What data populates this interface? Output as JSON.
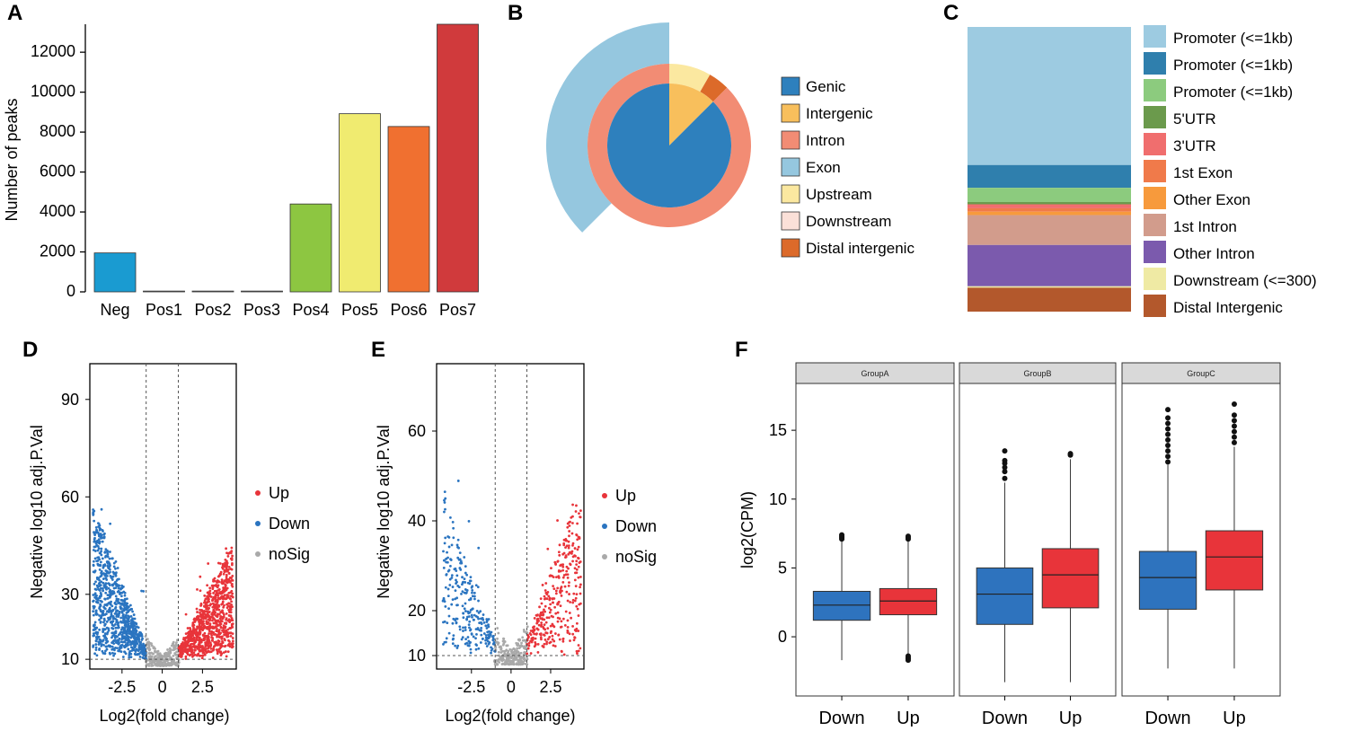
{
  "panel_labels": {
    "A": "A",
    "B": "B",
    "C": "C",
    "D": "D",
    "E": "E",
    "F": "F"
  },
  "chart_data": [
    {
      "panel": "A",
      "type": "bar",
      "ylabel": "Number of peaks",
      "xlabel": "",
      "categories": [
        "Neg",
        "Pos1",
        "Pos2",
        "Pos3",
        "Pos4",
        "Pos5",
        "Pos6",
        "Pos7"
      ],
      "values": [
        1950,
        40,
        40,
        40,
        4400,
        8920,
        8280,
        13400
      ],
      "colors": [
        "#1a9bd1",
        "#cfcfcf",
        "#cfcfcf",
        "#cfcfcf",
        "#8dc641",
        "#f0eb70",
        "#f07030",
        "#d03a3c"
      ],
      "ylim": [
        0,
        13400
      ],
      "yticks": [
        0,
        2000,
        4000,
        6000,
        8000,
        10000,
        12000
      ]
    },
    {
      "panel": "B",
      "type": "pie",
      "legend": [
        {
          "label": "Genic",
          "color": "#2e80bd"
        },
        {
          "label": "Intergenic",
          "color": "#f8bf5c"
        },
        {
          "label": "Intron",
          "color": "#f28c74"
        },
        {
          "label": "Exon",
          "color": "#95c7df"
        },
        {
          "label": "Upstream",
          "color": "#fbe8a0"
        },
        {
          "label": "Downstream",
          "color": "#fbe0d8"
        },
        {
          "label": "Distal intergenic",
          "color": "#dc6a2a"
        }
      ],
      "rings": {
        "inner": [
          {
            "label": "Genic",
            "value": 87.5
          },
          {
            "label": "Intergenic",
            "value": 12.5
          }
        ],
        "middle": [
          {
            "label": "Intron",
            "value": 87.5
          },
          {
            "label": "Upstream",
            "value": 8.3
          },
          {
            "label": "Distal intergenic",
            "value": 4.2
          }
        ],
        "outer": [
          {
            "label": "Exon",
            "value": 37.5
          },
          {
            "label": "None",
            "value": 62.5
          }
        ]
      }
    },
    {
      "panel": "C",
      "type": "bar",
      "stacked": true,
      "categories": [
        "Promoter (<=1kb)",
        "Promoter (<=1kb)",
        "Promoter (<=1kb)",
        "5'UTR",
        "3'UTR",
        "1st Exon",
        "Other Exon",
        "1st Intron",
        "Other Intron",
        "Downstream (<=300)",
        "Distal Intergenic"
      ],
      "values": [
        48.5,
        8,
        5,
        0.8,
        1.4,
        1.2,
        1.2,
        10.5,
        14.5,
        0.5,
        8.4
      ],
      "colors": [
        "#9dcbe1",
        "#2f7fad",
        "#8ccb7e",
        "#6b9a4c",
        "#f06e6e",
        "#f07a4a",
        "#f79a3c",
        "#d29c8c",
        "#7b5aad",
        "#efeaa4",
        "#b3582c"
      ]
    },
    {
      "panel": "D",
      "type": "scatter",
      "xlabel": "Log2(fold change)",
      "ylabel": "Negative log10 adj.P.Val",
      "xticks": [
        -2.5,
        0,
        2.5
      ],
      "yticks": [
        10,
        30,
        60,
        90
      ],
      "xlim": [
        -4.5,
        4.6
      ],
      "ylim": [
        7,
        101
      ],
      "thresholds": {
        "x": [
          -1,
          1
        ],
        "y": 10
      },
      "legend": [
        {
          "label": "Up",
          "color": "#e8343a"
        },
        {
          "label": "Down",
          "color": "#2a74c0"
        },
        {
          "label": "noSig",
          "color": "#a9a9a9"
        }
      ]
    },
    {
      "panel": "E",
      "type": "scatter",
      "xlabel": "Log2(fold change)",
      "ylabel": "Negative log10 adj.P.Val",
      "xticks": [
        -2.5,
        0,
        2.5
      ],
      "yticks": [
        10,
        20,
        40,
        60
      ],
      "xlim": [
        -4.7,
        4.6
      ],
      "ylim": [
        7,
        75
      ],
      "thresholds": {
        "x": [
          -1,
          1
        ],
        "y": 10
      },
      "legend": [
        {
          "label": "Up",
          "color": "#e8343a"
        },
        {
          "label": "Down",
          "color": "#2a74c0"
        },
        {
          "label": "noSig",
          "color": "#a9a9a9"
        }
      ]
    },
    {
      "panel": "F",
      "type": "box",
      "ylabel": "log2(CPM)",
      "ylim": [
        -4.3,
        18.4
      ],
      "yticks": [
        0,
        5,
        10,
        15
      ],
      "facets": [
        {
          "name": "GroupA",
          "boxes": [
            {
              "label": "Down",
              "color": "#2e73be",
              "min": -1.7,
              "q1": 1.2,
              "median": 2.3,
              "q3": 3.3,
              "max": 7.0,
              "outliers": [
                7.1,
                7.2,
                7.3,
                7.4
              ]
            },
            {
              "label": "Up",
              "color": "#e8343a",
              "min": -1.3,
              "q1": 1.6,
              "median": 2.6,
              "q3": 3.5,
              "max": 7.0,
              "outliers": [
                7.1,
                7.2,
                7.3,
                -1.4,
                -1.5,
                -1.6,
                -1.7
              ]
            }
          ]
        },
        {
          "name": "GroupB",
          "boxes": [
            {
              "label": "Down",
              "color": "#2e73be",
              "min": -3.3,
              "q1": 0.9,
              "median": 3.1,
              "q3": 5.0,
              "max": 11.2,
              "outliers": [
                11.5,
                12.0,
                12.3,
                12.6,
                12.8,
                13.5
              ]
            },
            {
              "label": "Up",
              "color": "#e8343a",
              "min": -3.3,
              "q1": 2.1,
              "median": 4.5,
              "q3": 6.4,
              "max": 12.9,
              "outliers": [
                13.2,
                13.3
              ]
            }
          ]
        },
        {
          "name": "GroupC",
          "boxes": [
            {
              "label": "Down",
              "color": "#2e73be",
              "min": -2.3,
              "q1": 2.0,
              "median": 4.3,
              "q3": 6.2,
              "max": 12.5,
              "outliers": [
                12.7,
                13.1,
                13.5,
                13.9,
                14.3,
                14.7,
                15.1,
                15.5,
                15.9,
                16.5
              ]
            },
            {
              "label": "Up",
              "color": "#e8343a",
              "min": -2.3,
              "q1": 3.4,
              "median": 5.8,
              "q3": 7.7,
              "max": 13.8,
              "outliers": [
                14.1,
                14.5,
                14.9,
                15.3,
                15.7,
                16.1,
                16.9
              ]
            }
          ]
        }
      ]
    }
  ]
}
